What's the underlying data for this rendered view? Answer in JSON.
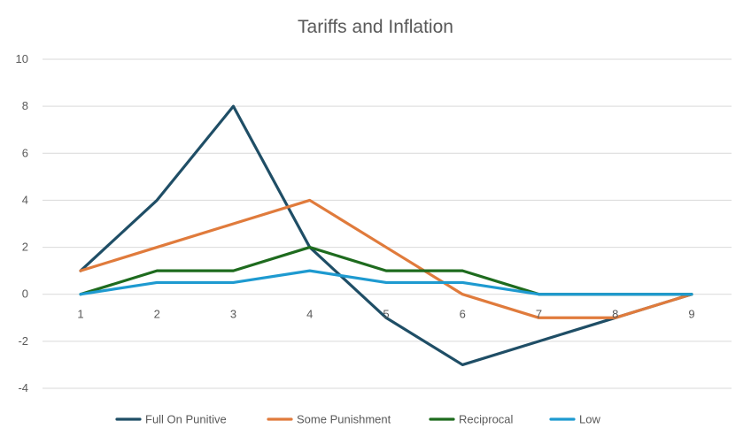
{
  "chart_data": {
    "type": "line",
    "title": "Tariffs and Inflation",
    "xlabel": "",
    "ylabel": "",
    "x": [
      1,
      2,
      3,
      4,
      5,
      6,
      7,
      8,
      9
    ],
    "x_tick_labels": [
      "1",
      "2",
      "3",
      "4",
      "5",
      "6",
      "7",
      "8",
      "9"
    ],
    "y_tick_labels": [
      "10",
      "8",
      "6",
      "4",
      "2",
      "0",
      "-2",
      "-4"
    ],
    "y_ticks": [
      10,
      8,
      6,
      4,
      2,
      0,
      -2,
      -4
    ],
    "ylim": [
      -4,
      10
    ],
    "grid": true,
    "legend_position": "bottom",
    "series": [
      {
        "name": "Full On Punitive",
        "color": "#1f4e66",
        "values": [
          1,
          4,
          8,
          2,
          -1,
          -3,
          -2,
          -1,
          0
        ]
      },
      {
        "name": "Some Punishment",
        "color": "#e07b3c",
        "values": [
          1,
          2,
          3,
          4,
          2,
          0,
          -1,
          -1,
          0
        ]
      },
      {
        "name": "Reciprocal",
        "color": "#1e6b1e",
        "values": [
          0,
          1,
          1,
          2,
          1,
          1,
          0,
          0,
          0
        ]
      },
      {
        "name": "Low",
        "color": "#1e9ad0",
        "values": [
          0,
          0.5,
          0.5,
          1,
          0.5,
          0.5,
          0,
          0,
          0
        ]
      }
    ]
  }
}
